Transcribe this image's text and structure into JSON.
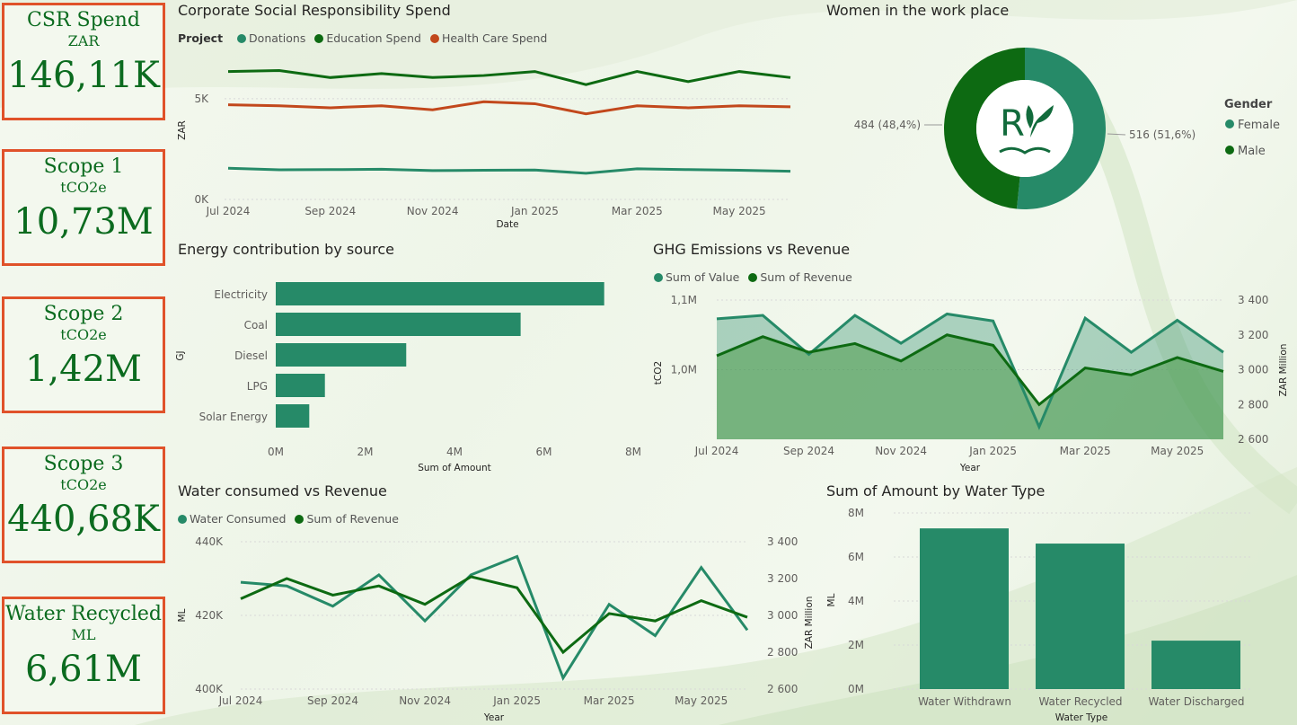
{
  "colors": {
    "teal": "#268a68",
    "dark": "#0d6a12",
    "orange": "#c2481c",
    "kpiBorder": "#e0522a",
    "kpiText": "#0b6b1f"
  },
  "kpis": [
    {
      "title": "CSR Spend",
      "unit": "ZAR",
      "value": "146,11K"
    },
    {
      "title": "Scope 1",
      "unit": "tCO2e",
      "value": "10,73M"
    },
    {
      "title": "Scope 2",
      "unit": "tCO2e",
      "value": "1,42M"
    },
    {
      "title": "Scope 3",
      "unit": "tCO2e",
      "value": "440,68K"
    },
    {
      "title": "Water Recycled",
      "unit": "ML",
      "value": "6,61M"
    }
  ],
  "csr": {
    "title": "Corporate Social Responsibility Spend",
    "legend_title": "Project",
    "series_names": [
      "Donations",
      "Education Spend",
      "Health Care Spend"
    ]
  },
  "women": {
    "title": "Women in the work place",
    "legend_title": "Gender"
  },
  "energy": {
    "title": "Energy contribution by source"
  },
  "ghg": {
    "title": "GHG Emissions vs Revenue",
    "series_names": [
      "Sum of Value",
      "Sum of Revenue"
    ]
  },
  "water": {
    "title": "Water consumed vs Revenue",
    "series_names": [
      "Water Consumed",
      "Sum of Revenue"
    ]
  },
  "watertype": {
    "title": "Sum of Amount by Water Type"
  },
  "chart_data": [
    {
      "id": "csr",
      "type": "line",
      "title": "Corporate Social Responsibility Spend",
      "xlabel": "Date",
      "ylabel": "ZAR",
      "x": [
        "Jul 2024",
        "Aug 2024",
        "Sep 2024",
        "Oct 2024",
        "Nov 2024",
        "Dec 2024",
        "Jan 2025",
        "Feb 2025",
        "Mar 2025",
        "Apr 2025",
        "May 2025",
        "Jun 2025"
      ],
      "xticks": [
        "Jul 2024",
        "Sep 2024",
        "Nov 2024",
        "Jan 2025",
        "Mar 2025",
        "May 2025"
      ],
      "yticks": [
        "0K",
        "5K"
      ],
      "ytick_values": [
        0,
        5000
      ],
      "ylim": [
        0,
        7000
      ],
      "series": [
        {
          "name": "Donations",
          "values": [
            1550,
            1470,
            1480,
            1500,
            1430,
            1450,
            1460,
            1300,
            1520,
            1480,
            1450,
            1400
          ]
        },
        {
          "name": "Education Spend",
          "values": [
            6350,
            6400,
            6050,
            6250,
            6050,
            6150,
            6350,
            5700,
            6350,
            5850,
            6350,
            6050
          ]
        },
        {
          "name": "Health Care Spend",
          "values": [
            4700,
            4650,
            4550,
            4650,
            4450,
            4850,
            4750,
            4250,
            4650,
            4550,
            4650,
            4600
          ]
        }
      ]
    },
    {
      "id": "gender",
      "type": "pie",
      "title": "Women in the work place",
      "labels": [
        "Female",
        "Male"
      ],
      "values": [
        516,
        484
      ],
      "data_labels": [
        "516 (51,6%)",
        "484 (48,4%)"
      ]
    },
    {
      "id": "energy",
      "type": "bar",
      "title": "Energy contribution by source",
      "xlabel": "Sum of Amount",
      "ylabel": "GJ",
      "categories": [
        "Electricity",
        "Coal",
        "Diesel",
        "LPG",
        "Solar Energy"
      ],
      "values": [
        7350000,
        5480000,
        2920000,
        1100000,
        750000
      ],
      "xticks": [
        "0M",
        "2M",
        "4M",
        "6M",
        "8M"
      ],
      "xlim": [
        0,
        8000000
      ]
    },
    {
      "id": "ghg",
      "type": "area",
      "title": "GHG Emissions vs Revenue",
      "xlabel": "Year",
      "ylabel": "tCO2",
      "y2label": "ZAR Million",
      "x": [
        "Jul 2024",
        "Aug 2024",
        "Sep 2024",
        "Oct 2024",
        "Nov 2024",
        "Dec 2024",
        "Jan 2025",
        "Feb 2025",
        "Mar 2025",
        "Apr 2025",
        "May 2025",
        "Jun 2025"
      ],
      "xticks": [
        "Jul 2024",
        "Sep 2024",
        "Nov 2024",
        "Jan 2025",
        "Mar 2025",
        "May 2025"
      ],
      "yticks": [
        "1,0M",
        "1,1M"
      ],
      "ytick_values": [
        1000000,
        1100000
      ],
      "ylim": [
        900000,
        1100000
      ],
      "y2ticks": [
        "2 600",
        "2 800",
        "3 000",
        "3 200",
        "3 400"
      ],
      "y2tick_values": [
        2600,
        2800,
        3000,
        3200,
        3400
      ],
      "y2lim": [
        2600,
        3400
      ],
      "series": [
        {
          "name": "Sum of Value",
          "axis": "left",
          "values": [
            1073000,
            1078000,
            1022000,
            1078000,
            1038000,
            1080000,
            1070000,
            918000,
            1074000,
            1025000,
            1071000,
            1025000
          ]
        },
        {
          "name": "Sum of Revenue",
          "axis": "right",
          "values": [
            3080,
            3190,
            3100,
            3150,
            3050,
            3200,
            3140,
            2800,
            3010,
            2970,
            3070,
            2990
          ]
        }
      ]
    },
    {
      "id": "water",
      "type": "line",
      "title": "Water consumed vs Revenue",
      "xlabel": "Year",
      "ylabel": "ML",
      "y2label": "ZAR Million",
      "x": [
        "Jul 2024",
        "Aug 2024",
        "Sep 2024",
        "Oct 2024",
        "Nov 2024",
        "Dec 2024",
        "Jan 2025",
        "Feb 2025",
        "Mar 2025",
        "Apr 2025",
        "May 2025",
        "Jun 2025"
      ],
      "xticks": [
        "Jul 2024",
        "Sep 2024",
        "Nov 2024",
        "Jan 2025",
        "Mar 2025",
        "May 2025"
      ],
      "yticks": [
        "400K",
        "420K",
        "440K"
      ],
      "ytick_values": [
        400000,
        420000,
        440000
      ],
      "ylim": [
        400000,
        440000
      ],
      "y2ticks": [
        "2 600",
        "2 800",
        "3 000",
        "3 200",
        "3 400"
      ],
      "y2tick_values": [
        2600,
        2800,
        3000,
        3200,
        3400
      ],
      "y2lim": [
        2600,
        3400
      ],
      "series": [
        {
          "name": "Water Consumed",
          "axis": "left",
          "values": [
            429000,
            428000,
            422500,
            431000,
            418500,
            431000,
            436000,
            403000,
            423000,
            414500,
            433000,
            416000
          ]
        },
        {
          "name": "Sum of Revenue",
          "axis": "right",
          "values": [
            3090,
            3200,
            3110,
            3160,
            3060,
            3210,
            3150,
            2800,
            3010,
            2970,
            3080,
            2990
          ]
        }
      ]
    },
    {
      "id": "watertype",
      "type": "bar",
      "title": "Sum of Amount by Water Type",
      "xlabel": "Water Type",
      "ylabel": "ML",
      "categories": [
        "Water Withdrawn",
        "Water Recycled",
        "Water Discharged"
      ],
      "values": [
        7300000,
        6610000,
        2200000
      ],
      "yticks": [
        "0M",
        "2M",
        "4M",
        "6M",
        "8M"
      ],
      "ylim": [
        0,
        8000000
      ]
    }
  ]
}
